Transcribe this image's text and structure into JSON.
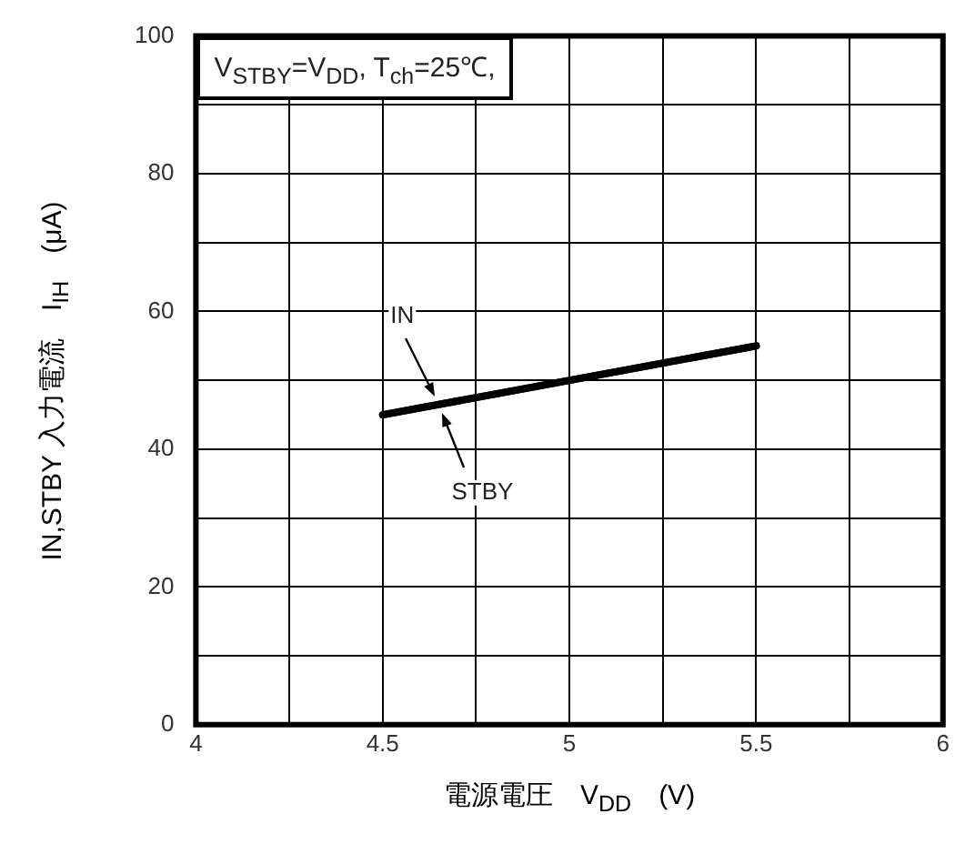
{
  "chart_data": {
    "type": "line",
    "x": [
      4.5,
      5.5
    ],
    "series": [
      {
        "color": "#000000",
        "values": [
          45,
          55
        ]
      },
      {
        "color": "#000000",
        "values": [
          45,
          55
        ]
      }
    ],
    "xlim": [
      4,
      6
    ],
    "xticks": [
      4,
      {
        "value": 4.25,
        "label": null
      },
      4.5,
      {
        "value": 4.75,
        "label": null
      },
      5,
      {
        "value": 5.25,
        "label": null
      },
      5.5,
      {
        "value": 5.75,
        "label": null
      },
      6
    ],
    "ylim": [
      0,
      100
    ],
    "yticks": [
      0,
      {
        "value": 10,
        "label": null
      },
      20,
      {
        "value": 30,
        "label": null
      },
      40,
      {
        "value": 50,
        "label": null
      },
      60,
      {
        "value": 70,
        "label": null
      },
      80,
      {
        "value": 90,
        "label": null
      },
      100
    ],
    "grid": true,
    "legend": false,
    "marker": "none",
    "line_style": "solid",
    "xlabel": "電源電圧　V$_{DD}$　(V)",
    "ylabel": "IN,STBY 入力電流　I$_{IH}$　(μA)",
    "annotations": [
      "V$_{STBY}$=V$_{DD}$, T$_{ch}$=25℃,",
      {
        "text": "IN",
        "x": 4.64,
        "y": 47.7
      },
      {
        "text": "STBY",
        "x": 4.66,
        "y": 45.3
      }
    ]
  }
}
